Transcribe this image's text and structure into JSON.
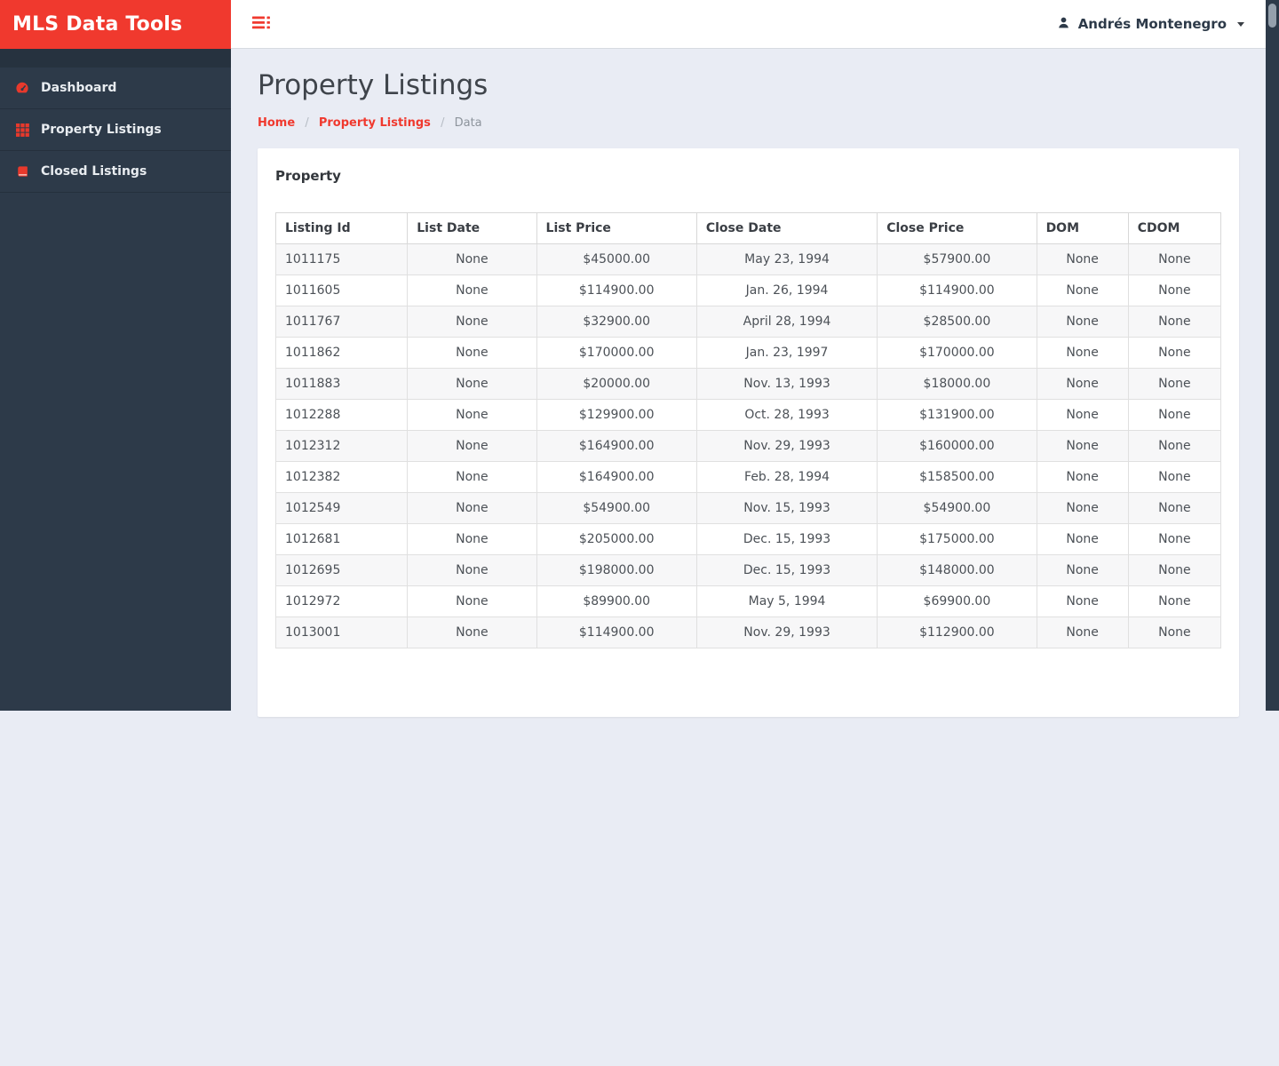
{
  "colors": {
    "brand_red": "#f0392e",
    "sidebar_bg": "#2d3a49",
    "content_bg": "#e9ecf4",
    "stripe_gray": "#f7f7f8"
  },
  "brand": {
    "title": "MLS Data Tools"
  },
  "topbar": {
    "user": {
      "name": "Andrés Montenegro"
    }
  },
  "sidebar": {
    "items": [
      {
        "id": "dashboard",
        "label": "Dashboard",
        "icon": "gauge-icon"
      },
      {
        "id": "property-listings",
        "label": "Property Listings",
        "icon": "table-grid-icon"
      },
      {
        "id": "closed-listings",
        "label": "Closed Listings",
        "icon": "book-icon"
      }
    ]
  },
  "page": {
    "title": "Property Listings",
    "breadcrumb": [
      {
        "label": "Home"
      },
      {
        "label": "Property Listings"
      },
      {
        "label": "Data"
      }
    ]
  },
  "panel": {
    "title": "Property"
  },
  "table": {
    "columns": [
      "Listing Id",
      "List Date",
      "List Price",
      "Close Date",
      "Close Price",
      "DOM",
      "CDOM"
    ],
    "rows": [
      [
        "1011175",
        "None",
        "$45000.00",
        "May 23, 1994",
        "$57900.00",
        "None",
        "None"
      ],
      [
        "1011605",
        "None",
        "$114900.00",
        "Jan. 26, 1994",
        "$114900.00",
        "None",
        "None"
      ],
      [
        "1011767",
        "None",
        "$32900.00",
        "April 28, 1994",
        "$28500.00",
        "None",
        "None"
      ],
      [
        "1011862",
        "None",
        "$170000.00",
        "Jan. 23, 1997",
        "$170000.00",
        "None",
        "None"
      ],
      [
        "1011883",
        "None",
        "$20000.00",
        "Nov. 13, 1993",
        "$18000.00",
        "None",
        "None"
      ],
      [
        "1012288",
        "None",
        "$129900.00",
        "Oct. 28, 1993",
        "$131900.00",
        "None",
        "None"
      ],
      [
        "1012312",
        "None",
        "$164900.00",
        "Nov. 29, 1993",
        "$160000.00",
        "None",
        "None"
      ],
      [
        "1012382",
        "None",
        "$164900.00",
        "Feb. 28, 1994",
        "$158500.00",
        "None",
        "None"
      ],
      [
        "1012549",
        "None",
        "$54900.00",
        "Nov. 15, 1993",
        "$54900.00",
        "None",
        "None"
      ],
      [
        "1012681",
        "None",
        "$205000.00",
        "Dec. 15, 1993",
        "$175000.00",
        "None",
        "None"
      ],
      [
        "1012695",
        "None",
        "$198000.00",
        "Dec. 15, 1993",
        "$148000.00",
        "None",
        "None"
      ],
      [
        "1012972",
        "None",
        "$89900.00",
        "May 5, 1994",
        "$69900.00",
        "None",
        "None"
      ],
      [
        "1013001",
        "None",
        "$114900.00",
        "Nov. 29, 1993",
        "$112900.00",
        "None",
        "None"
      ]
    ]
  }
}
